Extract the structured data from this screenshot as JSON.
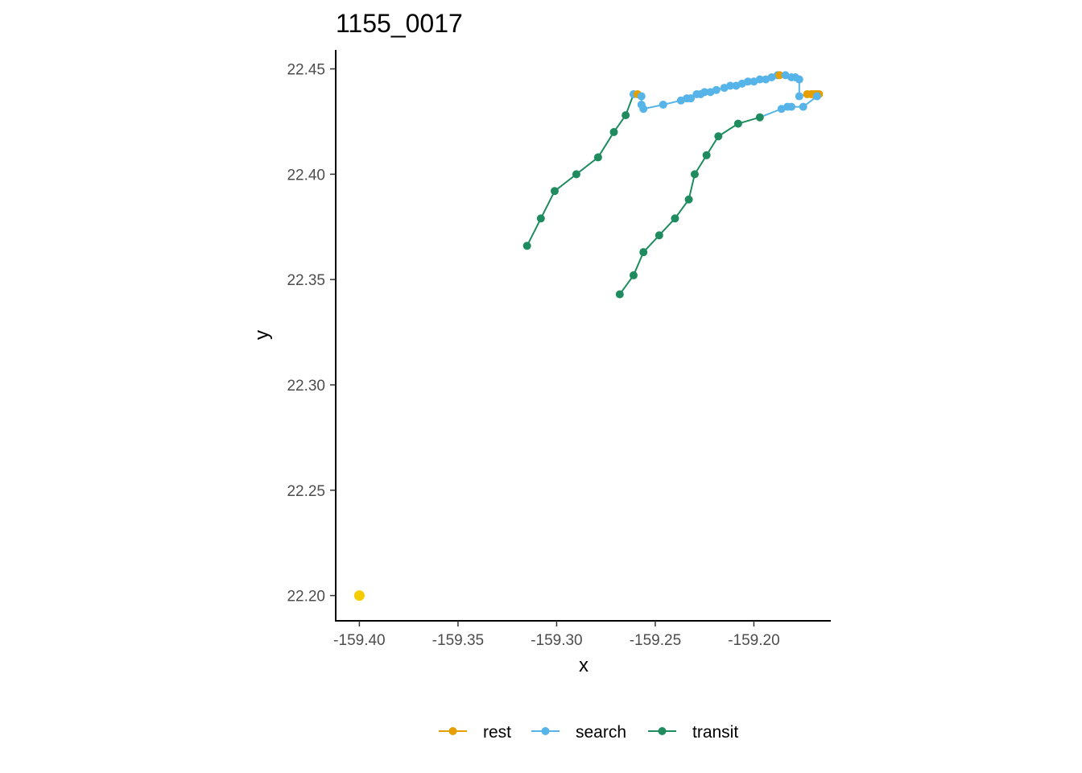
{
  "chart_data": {
    "type": "scatter",
    "title": "1155_0017",
    "xlabel": "x",
    "ylabel": "y",
    "xlim": [
      -159.412,
      -159.161
    ],
    "ylim": [
      22.188,
      22.459
    ],
    "x_ticks": [
      {
        "value": -159.4,
        "label": "-159.40"
      },
      {
        "value": -159.35,
        "label": "-159.35"
      },
      {
        "value": -159.3,
        "label": "-159.30"
      },
      {
        "value": -159.25,
        "label": "-159.25"
      },
      {
        "value": -159.2,
        "label": "-159.20"
      }
    ],
    "y_ticks": [
      {
        "value": 22.2,
        "label": "22.20"
      },
      {
        "value": 22.25,
        "label": "22.25"
      },
      {
        "value": 22.3,
        "label": "22.30"
      },
      {
        "value": 22.35,
        "label": "22.35"
      },
      {
        "value": 22.4,
        "label": "22.40"
      },
      {
        "value": 22.45,
        "label": "22.45"
      }
    ],
    "grid": false,
    "legend_position": "bottom",
    "colors": {
      "rest": "#E69F00",
      "search": "#56B4E9",
      "transit": "#1E8C5E",
      "start": "#F5CC00",
      "axis": "#000000"
    },
    "start_point": {
      "x": -159.4,
      "y": 22.2
    },
    "track": [
      {
        "x": -159.315,
        "y": 22.366,
        "state": "transit"
      },
      {
        "x": -159.308,
        "y": 22.379,
        "state": "transit"
      },
      {
        "x": -159.301,
        "y": 22.392,
        "state": "transit"
      },
      {
        "x": -159.29,
        "y": 22.4,
        "state": "transit"
      },
      {
        "x": -159.279,
        "y": 22.408,
        "state": "transit"
      },
      {
        "x": -159.271,
        "y": 22.42,
        "state": "transit"
      },
      {
        "x": -159.265,
        "y": 22.428,
        "state": "transit"
      },
      {
        "x": -159.261,
        "y": 22.438,
        "state": "search"
      },
      {
        "x": -159.259,
        "y": 22.438,
        "state": "rest"
      },
      {
        "x": -159.257,
        "y": 22.437,
        "state": "search"
      },
      {
        "x": -159.257,
        "y": 22.433,
        "state": "search"
      },
      {
        "x": -159.256,
        "y": 22.431,
        "state": "search"
      },
      {
        "x": -159.246,
        "y": 22.433,
        "state": "search"
      },
      {
        "x": -159.237,
        "y": 22.435,
        "state": "search"
      },
      {
        "x": -159.234,
        "y": 22.436,
        "state": "search"
      },
      {
        "x": -159.232,
        "y": 22.436,
        "state": "search"
      },
      {
        "x": -159.229,
        "y": 22.438,
        "state": "search"
      },
      {
        "x": -159.227,
        "y": 22.438,
        "state": "search"
      },
      {
        "x": -159.225,
        "y": 22.439,
        "state": "search"
      },
      {
        "x": -159.222,
        "y": 22.439,
        "state": "search"
      },
      {
        "x": -159.219,
        "y": 22.44,
        "state": "search"
      },
      {
        "x": -159.215,
        "y": 22.441,
        "state": "search"
      },
      {
        "x": -159.212,
        "y": 22.442,
        "state": "search"
      },
      {
        "x": -159.209,
        "y": 22.442,
        "state": "search"
      },
      {
        "x": -159.206,
        "y": 22.443,
        "state": "search"
      },
      {
        "x": -159.203,
        "y": 22.444,
        "state": "search"
      },
      {
        "x": -159.2,
        "y": 22.444,
        "state": "search"
      },
      {
        "x": -159.197,
        "y": 22.445,
        "state": "search"
      },
      {
        "x": -159.194,
        "y": 22.445,
        "state": "search"
      },
      {
        "x": -159.191,
        "y": 22.446,
        "state": "search"
      },
      {
        "x": -159.188,
        "y": 22.447,
        "state": "search"
      },
      {
        "x": -159.187,
        "y": 22.447,
        "state": "rest"
      },
      {
        "x": -159.184,
        "y": 22.447,
        "state": "search"
      },
      {
        "x": -159.181,
        "y": 22.446,
        "state": "search"
      },
      {
        "x": -159.179,
        "y": 22.446,
        "state": "search"
      },
      {
        "x": -159.177,
        "y": 22.445,
        "state": "search"
      },
      {
        "x": -159.177,
        "y": 22.437,
        "state": "search"
      },
      {
        "x": -159.173,
        "y": 22.438,
        "state": "rest"
      },
      {
        "x": -159.171,
        "y": 22.438,
        "state": "rest"
      },
      {
        "x": -159.17,
        "y": 22.438,
        "state": "rest"
      },
      {
        "x": -159.169,
        "y": 22.438,
        "state": "rest"
      },
      {
        "x": -159.168,
        "y": 22.438,
        "state": "rest"
      },
      {
        "x": -159.167,
        "y": 22.438,
        "state": "rest"
      },
      {
        "x": -159.168,
        "y": 22.437,
        "state": "search"
      },
      {
        "x": -159.175,
        "y": 22.432,
        "state": "search"
      },
      {
        "x": -159.181,
        "y": 22.432,
        "state": "search"
      },
      {
        "x": -159.183,
        "y": 22.432,
        "state": "search"
      },
      {
        "x": -159.186,
        "y": 22.431,
        "state": "search"
      },
      {
        "x": -159.197,
        "y": 22.427,
        "state": "transit"
      },
      {
        "x": -159.208,
        "y": 22.424,
        "state": "transit"
      },
      {
        "x": -159.218,
        "y": 22.418,
        "state": "transit"
      },
      {
        "x": -159.224,
        "y": 22.409,
        "state": "transit"
      },
      {
        "x": -159.23,
        "y": 22.4,
        "state": "transit"
      },
      {
        "x": -159.233,
        "y": 22.388,
        "state": "transit"
      },
      {
        "x": -159.24,
        "y": 22.379,
        "state": "transit"
      },
      {
        "x": -159.248,
        "y": 22.371,
        "state": "transit"
      },
      {
        "x": -159.256,
        "y": 22.363,
        "state": "transit"
      },
      {
        "x": -159.261,
        "y": 22.352,
        "state": "transit"
      },
      {
        "x": -159.268,
        "y": 22.343,
        "state": "transit"
      }
    ],
    "legend": [
      {
        "key": "rest",
        "label": "rest"
      },
      {
        "key": "search",
        "label": "search"
      },
      {
        "key": "transit",
        "label": "transit"
      }
    ]
  }
}
